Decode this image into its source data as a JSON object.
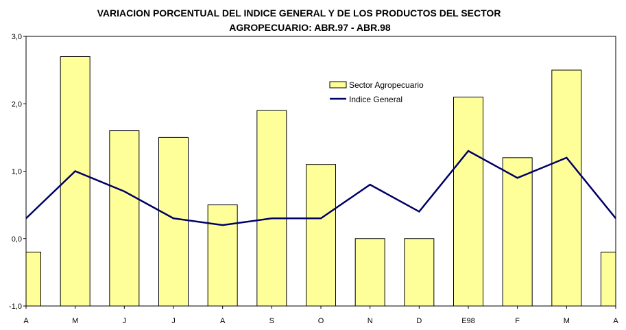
{
  "chart_data": {
    "type": "bar+line",
    "title": [
      "VARIACION PORCENTUAL DEL INDICE GENERAL Y DE LOS PRODUCTOS DEL SECTOR",
      "AGROPECUARIO: ABR.97 - ABR.98"
    ],
    "categories": [
      "A",
      "M",
      "J",
      "J",
      "A",
      "S",
      "O",
      "N",
      "D",
      "E98",
      "F",
      "M",
      "A"
    ],
    "series": [
      {
        "name": "Sector Agropecuario",
        "type": "bar",
        "color": "#FFFF99",
        "values": [
          -0.2,
          2.7,
          1.6,
          1.5,
          0.5,
          1.9,
          1.1,
          0.0,
          0.0,
          2.1,
          1.2,
          2.5,
          -0.2
        ]
      },
      {
        "name": "Indice General",
        "type": "line",
        "color": "#000066",
        "values": [
          0.3,
          1.0,
          0.7,
          0.3,
          0.2,
          0.3,
          0.3,
          0.8,
          0.4,
          1.3,
          0.9,
          1.2,
          0.3
        ]
      }
    ],
    "ylim": [
      -1,
      3
    ],
    "yticks": [
      "-1,0",
      "0,0",
      "1,0",
      "2,0",
      "3,0"
    ],
    "grid": false,
    "legend": "top-right"
  }
}
